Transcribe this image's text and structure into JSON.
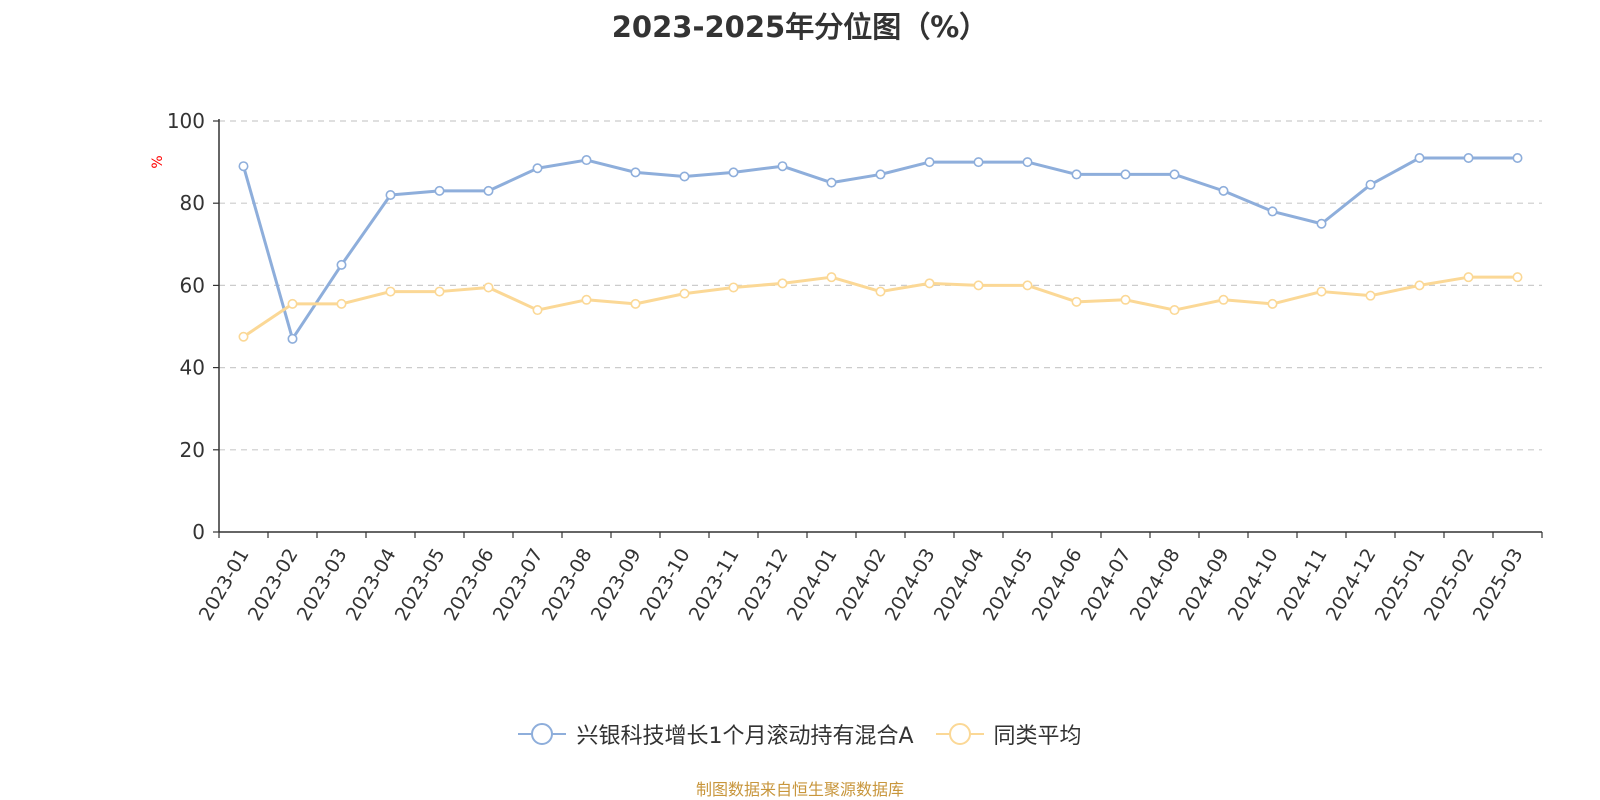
{
  "chart_data": {
    "type": "line",
    "title": "2023-2025年分位图（%）",
    "ylabel": "%",
    "xlabel": "",
    "ylim": [
      0,
      100
    ],
    "yticks": [
      0,
      20,
      40,
      60,
      80,
      100
    ],
    "grid": true,
    "categories": [
      "2023-01",
      "2023-02",
      "2023-03",
      "2023-04",
      "2023-05",
      "2023-06",
      "2023-07",
      "2023-08",
      "2023-09",
      "2023-10",
      "2023-11",
      "2023-12",
      "2024-01",
      "2024-02",
      "2024-03",
      "2024-04",
      "2024-05",
      "2024-06",
      "2024-07",
      "2024-08",
      "2024-09",
      "2024-10",
      "2024-11",
      "2024-12",
      "2025-01",
      "2025-02",
      "2025-03"
    ],
    "series": [
      {
        "name": "兴银科技增长1个月滚动持有混合A",
        "color": "#8eaedb",
        "values": [
          89,
          47,
          65,
          82,
          83,
          83,
          88.5,
          90.5,
          87.5,
          86.5,
          87.5,
          89,
          85,
          87,
          90,
          90,
          90,
          87,
          87,
          87,
          83,
          78,
          75,
          84.5,
          91,
          91,
          91
        ]
      },
      {
        "name": "同类平均",
        "color": "#fbd896",
        "values": [
          47.5,
          55.5,
          55.5,
          58.5,
          58.5,
          59.5,
          54,
          56.5,
          55.5,
          58,
          59.5,
          60.5,
          62,
          58.5,
          60.5,
          60,
          60,
          56,
          56.5,
          54,
          56.5,
          55.5,
          58.5,
          57.5,
          60,
          62,
          62
        ]
      }
    ],
    "legend_position": "bottom"
  },
  "footer": {
    "source": "制图数据来自恒生聚源数据库"
  },
  "colors": {
    "axis": "#333333",
    "grid": "#cccccc",
    "ylabel": "#ff0000",
    "source": "#c8963c"
  }
}
